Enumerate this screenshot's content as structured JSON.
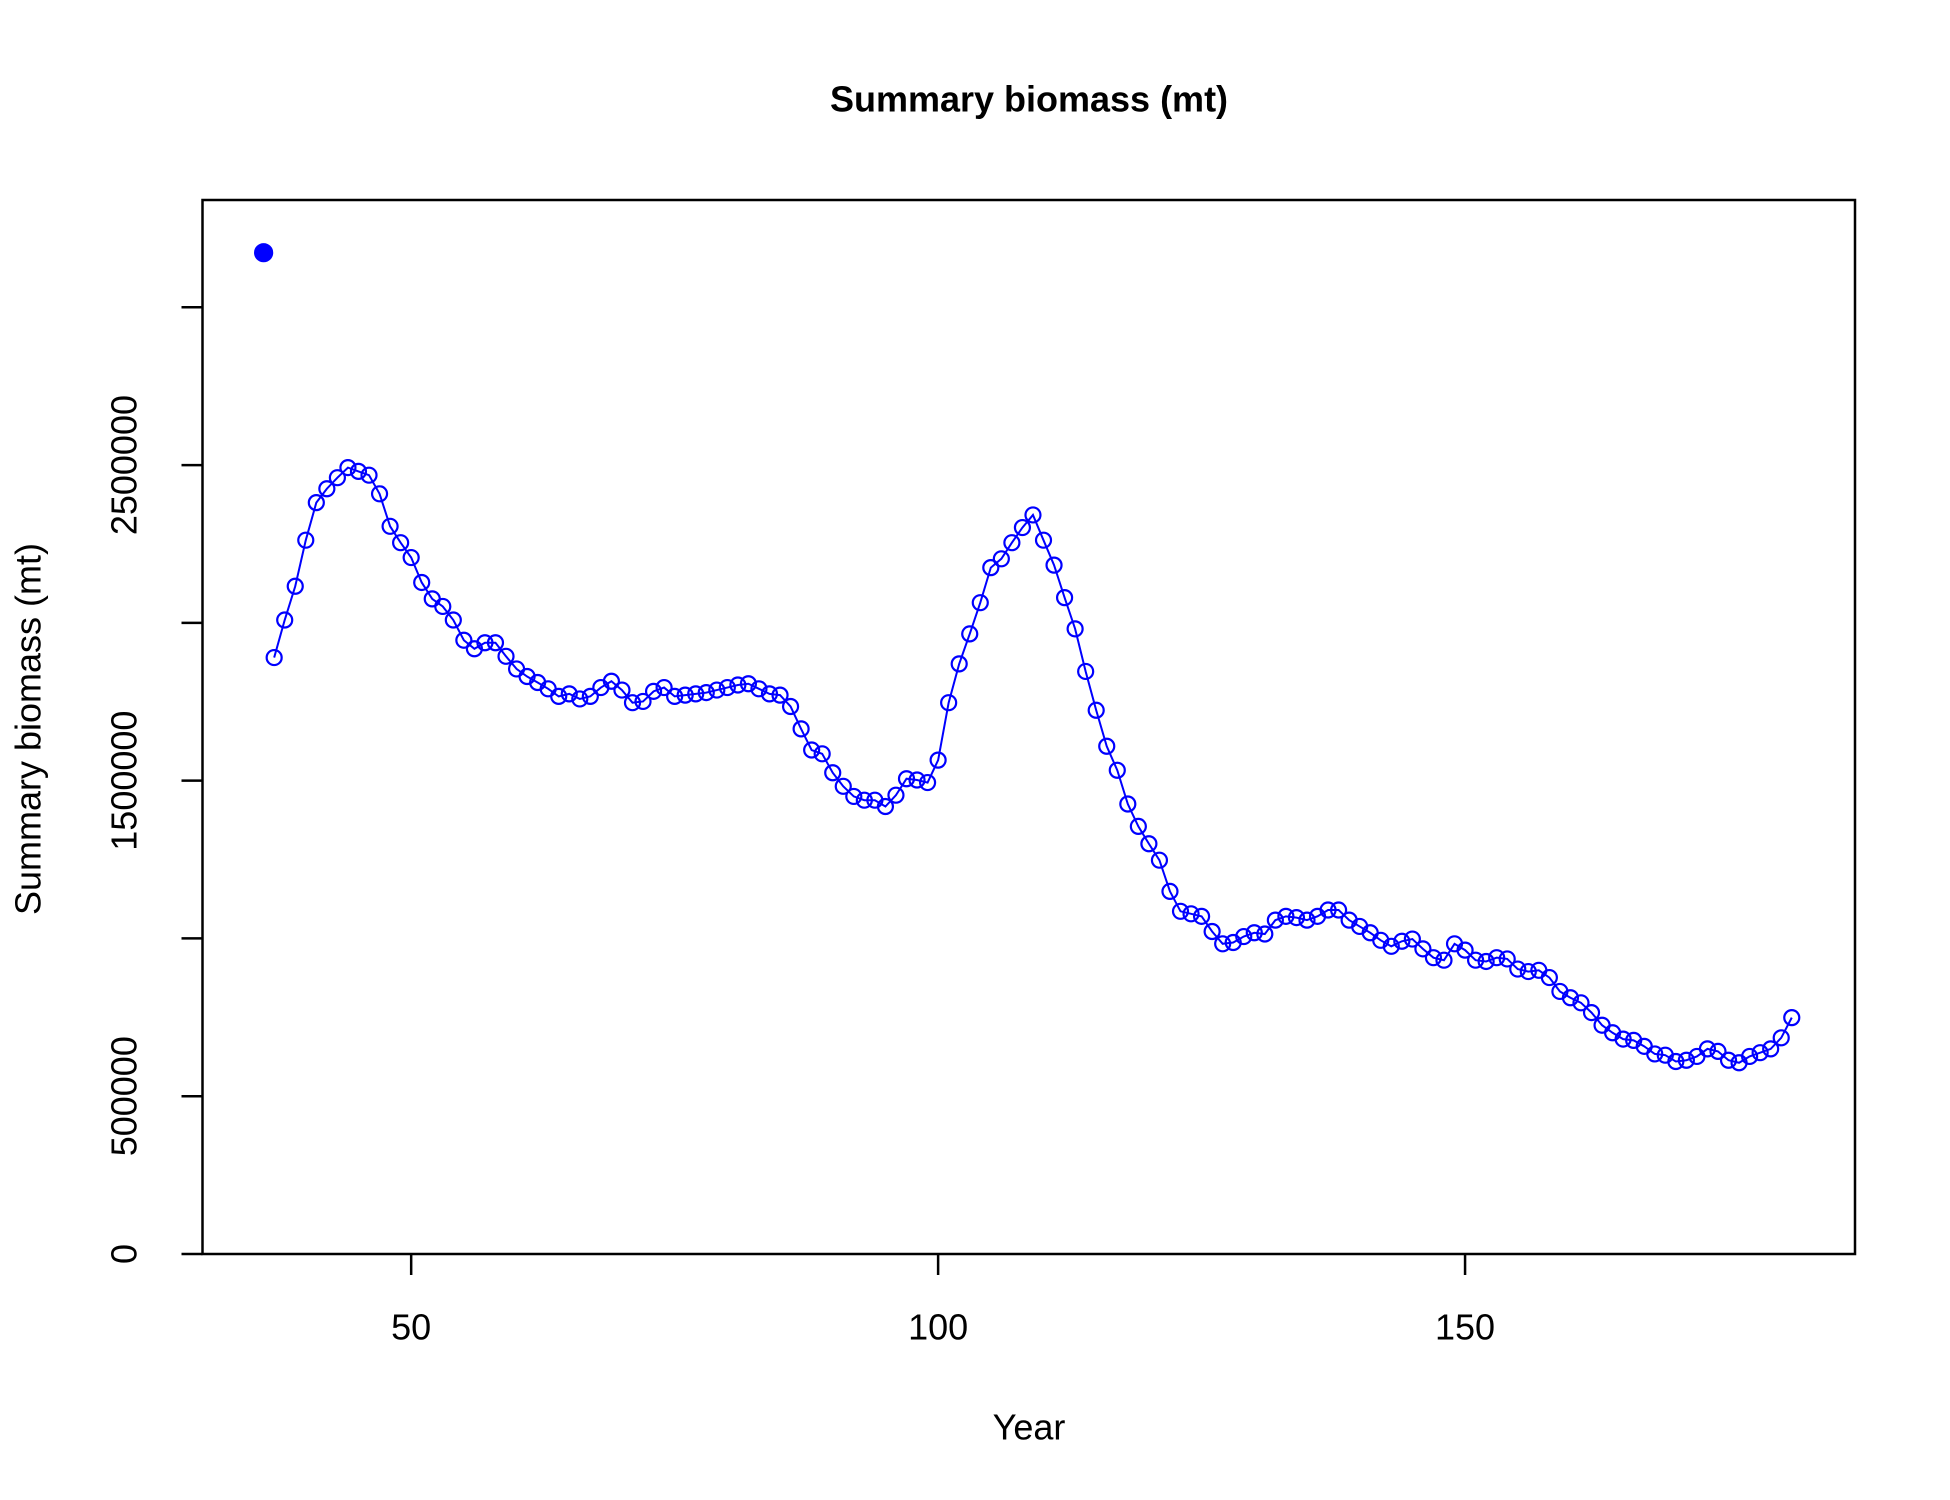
{
  "chart_data": {
    "type": "line",
    "title": "Summary biomass (mt)",
    "xlabel": "Year",
    "ylabel": "Summary biomass (mt)",
    "xlim": [
      30.2,
      187.0
    ],
    "ylim": [
      0,
      3340000
    ],
    "xticks": [
      50,
      100,
      150
    ],
    "yticks": [
      0,
      500000,
      {
        "value": 1000000,
        "label": null
      },
      1500000,
      {
        "value": 2000000,
        "label": null
      },
      2500000,
      {
        "value": 3000000,
        "label": null
      }
    ],
    "series": [
      {
        "color": "#0000ff",
        "marker": "filled",
        "line": false,
        "x": [
          36
        ],
        "values": [
          3173000
        ]
      },
      {
        "color": "#0000ff",
        "marker": "open",
        "line": true,
        "x": [
          37,
          38,
          39,
          40,
          41,
          42,
          43,
          44,
          45,
          46,
          47,
          48,
          49,
          50,
          51,
          52,
          53,
          54,
          55,
          56,
          57,
          58,
          59,
          60,
          61,
          62,
          63,
          64,
          65,
          66,
          67,
          68,
          69,
          70,
          71,
          72,
          73,
          74,
          75,
          76,
          77,
          78,
          79,
          80,
          81,
          82,
          83,
          84,
          85,
          86,
          87,
          88,
          89,
          90,
          91,
          92,
          93,
          94,
          95,
          96,
          97,
          98,
          99,
          100,
          101,
          102,
          103,
          104,
          105,
          106,
          107,
          108,
          109,
          110,
          111,
          112,
          113,
          114,
          115,
          116,
          117,
          118,
          119,
          120,
          121,
          122,
          123,
          124,
          125,
          126,
          127,
          128,
          129,
          130,
          131,
          132,
          133,
          134,
          135,
          136,
          137,
          138,
          139,
          140,
          141,
          142,
          143,
          144,
          145,
          146,
          147,
          148,
          149,
          150,
          151,
          152,
          153,
          154,
          155,
          156,
          157,
          158,
          159,
          160,
          161,
          162,
          163,
          164,
          165,
          166,
          167,
          168,
          169,
          170,
          171,
          172,
          173,
          174,
          175,
          176,
          177,
          178,
          179,
          180,
          181
        ],
        "values": [
          1890000,
          2009000,
          2116000,
          2262000,
          2381000,
          2425000,
          2460000,
          2492000,
          2480000,
          2468000,
          2409000,
          2306000,
          2254000,
          2207000,
          2128000,
          2076000,
          2052000,
          2009000,
          1945000,
          1918000,
          1937000,
          1937000,
          1894000,
          1854000,
          1830000,
          1811000,
          1791000,
          1767000,
          1775000,
          1759000,
          1767000,
          1795000,
          1815000,
          1787000,
          1747000,
          1751000,
          1783000,
          1795000,
          1767000,
          1771000,
          1775000,
          1779000,
          1787000,
          1795000,
          1803000,
          1807000,
          1791000,
          1775000,
          1771000,
          1735000,
          1664000,
          1597000,
          1585000,
          1525000,
          1482000,
          1450000,
          1438000,
          1438000,
          1418000,
          1454000,
          1506000,
          1502000,
          1494000,
          1565000,
          1747000,
          1870000,
          1965000,
          2064000,
          2175000,
          2203000,
          2254000,
          2302000,
          2342000,
          2262000,
          2183000,
          2080000,
          1981000,
          1846000,
          1723000,
          1609000,
          1533000,
          1426000,
          1355000,
          1300000,
          1248000,
          1149000,
          1086000,
          1078000,
          1070000,
          1022000,
          983000,
          987000,
          1006000,
          1018000,
          1014000,
          1058000,
          1070000,
          1066000,
          1058000,
          1070000,
          1090000,
          1090000,
          1058000,
          1038000,
          1018000,
          994000,
          975000,
          991000,
          998000,
          967000,
          939000,
          931000,
          983000,
          963000,
          931000,
          927000,
          939000,
          935000,
          903000,
          895000,
          899000,
          876000,
          832000,
          812000,
          796000,
          765000,
          725000,
          701000,
          681000,
          677000,
          658000,
          634000,
          630000,
          610000,
          614000,
          626000,
          650000,
          642000,
          614000,
          606000,
          626000,
          638000,
          650000,
          685000,
          749000
        ]
      }
    ]
  }
}
